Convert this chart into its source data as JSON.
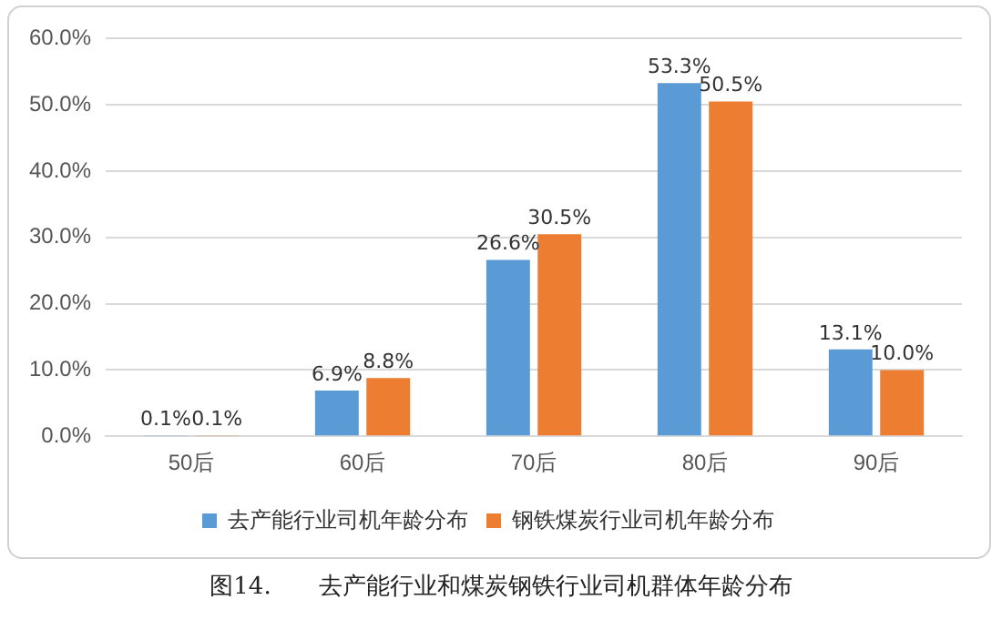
{
  "chart_data": {
    "type": "bar",
    "categories": [
      "50后",
      "60后",
      "70后",
      "80后",
      "90后"
    ],
    "series": [
      {
        "name": "去产能行业司机年龄分布",
        "color": "#5b9bd5",
        "values": [
          0.1,
          6.9,
          26.6,
          53.3,
          13.1
        ],
        "value_labels": [
          "0.1%",
          "6.9%",
          "26.6%",
          "53.3%",
          "13.1%"
        ]
      },
      {
        "name": "钢铁煤炭行业司机年龄分布",
        "color": "#ed7d31",
        "values": [
          0.1,
          8.8,
          30.5,
          50.5,
          10.0
        ],
        "value_labels": [
          "0.1%",
          "8.8%",
          "30.5%",
          "50.5%",
          "10.0%"
        ]
      }
    ],
    "ylim": [
      0,
      60
    ],
    "yticks": [
      {
        "value": 0,
        "label": "0.0%"
      },
      {
        "value": 10,
        "label": "10.0%"
      },
      {
        "value": 20,
        "label": "20.0%"
      },
      {
        "value": 30,
        "label": "30.0%"
      },
      {
        "value": 40,
        "label": "40.0%"
      },
      {
        "value": 50,
        "label": "50.0%"
      },
      {
        "value": 60,
        "label": "60.0%"
      }
    ],
    "grid": "y",
    "legend": "bottom",
    "annotations": [
      "图14.　　去产能行业和煤炭钢铁行业司机群体年龄分布"
    ]
  }
}
